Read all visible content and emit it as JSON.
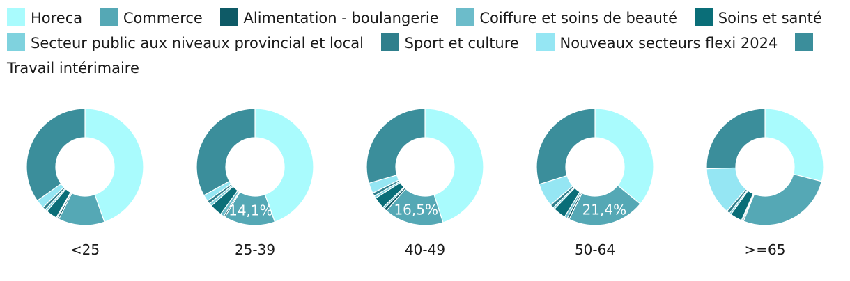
{
  "chart_data": {
    "type": "donut",
    "series": [
      {
        "name": "Horeca",
        "color": "#a9fbfd"
      },
      {
        "name": "Commerce",
        "color": "#55a8b5"
      },
      {
        "name": "Alimentation - boulangerie",
        "color": "#0e5a66"
      },
      {
        "name": "Coiffure et soins de beauté",
        "color": "#6cbcca"
      },
      {
        "name": "Soins et santé",
        "color": "#0a6e78"
      },
      {
        "name": "Secteur public aux niveaux provincial et local",
        "color": "#7fd2de"
      },
      {
        "name": "Sport et culture",
        "color": "#2f7f8c"
      },
      {
        "name": "Nouveaux secteurs flexi 2024",
        "color": "#95e6f3"
      },
      {
        "name": "Travail intérimaire",
        "color": "#3b8e9b"
      }
    ],
    "categories": [
      "<25",
      "25-39",
      "40-49",
      "50-64",
      ">=65"
    ],
    "values": [
      [
        44.6,
        12.8,
        0.5,
        0.3,
        3.1,
        0.6,
        0.9,
        2.4,
        34.8
      ],
      [
        44.5,
        14.1,
        0.4,
        1.0,
        3.4,
        0.8,
        0.9,
        1.8,
        33.1
      ],
      [
        45.0,
        16.5,
        0.8,
        0.5,
        3.2,
        0.7,
        0.9,
        2.9,
        29.5
      ],
      [
        35.9,
        21.4,
        0.6,
        0.8,
        3.5,
        0.5,
        1.0,
        6.5,
        29.8
      ],
      [
        29.0,
        27.0,
        0.3,
        0.3,
        3.3,
        0.5,
        0.9,
        13.2,
        25.5
      ]
    ],
    "labels": [
      {
        "chart": 1,
        "series": 1,
        "text": "14,1%"
      },
      {
        "chart": 2,
        "series": 1,
        "text": "16,5%"
      },
      {
        "chart": 3,
        "series": 1,
        "text": "21,4%"
      }
    ],
    "legend_position": "top"
  }
}
